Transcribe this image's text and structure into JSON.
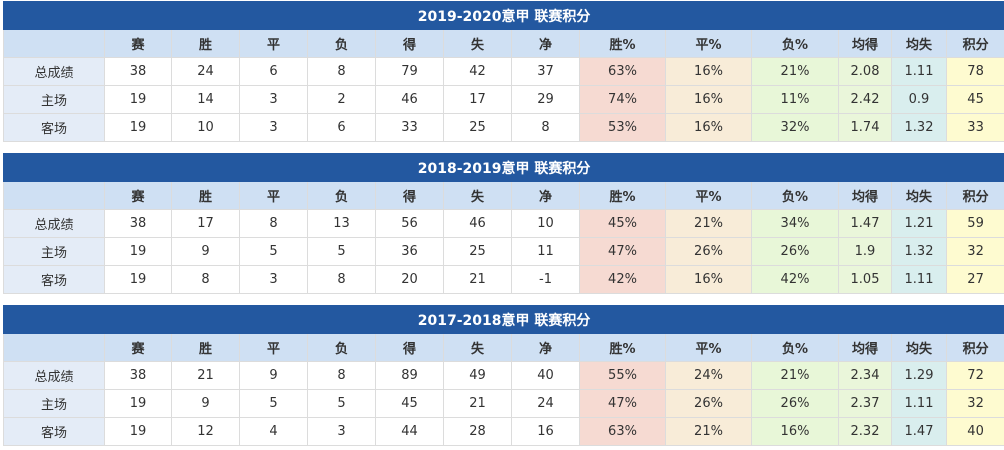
{
  "columns": [
    "",
    "赛",
    "胜",
    "平",
    "负",
    "得",
    "失",
    "净",
    "胜%",
    "平%",
    "负%",
    "均得",
    "均失",
    "积分"
  ],
  "colors": {
    "title_bg": "#2358a0",
    "header_bg": "#cfe0f3",
    "win_pct": "#f6dad2",
    "draw_pct": "#f8ecd8",
    "loss_pct": "#e8f7d8",
    "avg_for": "#eaf6da",
    "avg_against": "#d9eeee",
    "points": "#fefbd0"
  },
  "tables": [
    {
      "title": "2019-2020意甲 联赛积分",
      "rows": [
        [
          "总成绩",
          "38",
          "24",
          "6",
          "8",
          "79",
          "42",
          "37",
          "63%",
          "16%",
          "21%",
          "2.08",
          "1.11",
          "78"
        ],
        [
          "主场",
          "19",
          "14",
          "3",
          "2",
          "46",
          "17",
          "29",
          "74%",
          "16%",
          "11%",
          "2.42",
          "0.9",
          "45"
        ],
        [
          "客场",
          "19",
          "10",
          "3",
          "6",
          "33",
          "25",
          "8",
          "53%",
          "16%",
          "32%",
          "1.74",
          "1.32",
          "33"
        ]
      ]
    },
    {
      "title": "2018-2019意甲 联赛积分",
      "rows": [
        [
          "总成绩",
          "38",
          "17",
          "8",
          "13",
          "56",
          "46",
          "10",
          "45%",
          "21%",
          "34%",
          "1.47",
          "1.21",
          "59"
        ],
        [
          "主场",
          "19",
          "9",
          "5",
          "5",
          "36",
          "25",
          "11",
          "47%",
          "26%",
          "26%",
          "1.9",
          "1.32",
          "32"
        ],
        [
          "客场",
          "19",
          "8",
          "3",
          "8",
          "20",
          "21",
          "-1",
          "42%",
          "16%",
          "42%",
          "1.05",
          "1.11",
          "27"
        ]
      ]
    },
    {
      "title": "2017-2018意甲 联赛积分",
      "rows": [
        [
          "总成绩",
          "38",
          "21",
          "9",
          "8",
          "89",
          "49",
          "40",
          "55%",
          "24%",
          "21%",
          "2.34",
          "1.29",
          "72"
        ],
        [
          "主场",
          "19",
          "9",
          "5",
          "5",
          "45",
          "21",
          "24",
          "47%",
          "26%",
          "26%",
          "2.37",
          "1.11",
          "32"
        ],
        [
          "客场",
          "19",
          "12",
          "4",
          "3",
          "44",
          "28",
          "16",
          "63%",
          "21%",
          "16%",
          "2.32",
          "1.47",
          "40"
        ]
      ]
    }
  ]
}
